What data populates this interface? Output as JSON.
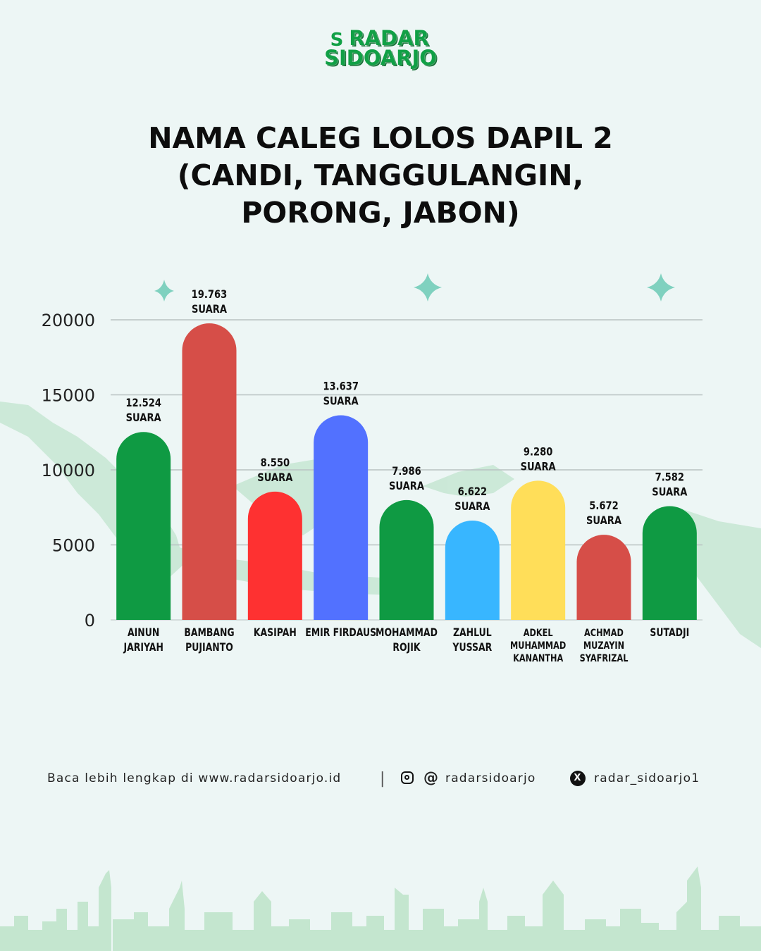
{
  "logo": {
    "line1": "RADAR",
    "line2": "SIDOARJO",
    "mark": "S"
  },
  "title_lines": [
    "NAMA CALEG LOLOS DAPIL 2",
    "(CANDI, TANGGULANGIN,",
    "PORONG, JABON)"
  ],
  "chart_data": {
    "type": "bar",
    "categories": [
      [
        "AINUN",
        "JARIYAH"
      ],
      [
        "BAMBANG",
        "PUJIANTO"
      ],
      [
        "KASIPAH"
      ],
      [
        "EMIR FIRDAUS"
      ],
      [
        "MOHAMMAD",
        "ROJIK"
      ],
      [
        "ZAHLUL",
        "YUSSAR"
      ],
      [
        "ADKEL",
        "MUHAMMAD",
        "KANANTHA"
      ],
      [
        "ACHMAD",
        "MUZAYIN",
        "SYAFRIZAL"
      ],
      [
        "SUTADJI"
      ]
    ],
    "values": [
      12524,
      19763,
      8550,
      13637,
      7986,
      6622,
      9280,
      5672,
      7582
    ],
    "data_labels": [
      [
        "12.524",
        "SUARA"
      ],
      [
        "19.763",
        "SUARA"
      ],
      [
        "8.550",
        "SUARA"
      ],
      [
        "13.637",
        "SUARA"
      ],
      [
        "7.986",
        "SUARA"
      ],
      [
        "6.622",
        "SUARA"
      ],
      [
        "9.280",
        "SUARA"
      ],
      [
        "5.672",
        "SUARA"
      ],
      [
        "7.582",
        "SUARA"
      ]
    ],
    "colors": [
      "#0f9a43",
      "#d64e48",
      "#fe3131",
      "#5271ff",
      "#0f9a43",
      "#38b6ff",
      "#ffde59",
      "#d64e48",
      "#0f9a43"
    ],
    "yticks": [
      "0",
      "5000",
      "10000",
      "15000",
      "20000"
    ],
    "ylim": [
      0,
      20000
    ],
    "grid": true
  },
  "footer": {
    "read_more": "Baca lebih lengkap di www.radarsidoarjo.id",
    "separator": "|",
    "instagram_icon": "instagram-icon",
    "threads_icon": "threads-icon",
    "threads_glyph": "@",
    "social_handle": "radarsidoarjo",
    "x_icon": "x-icon",
    "x_glyph": "X",
    "x_handle": "radar_sidoarjo1"
  }
}
